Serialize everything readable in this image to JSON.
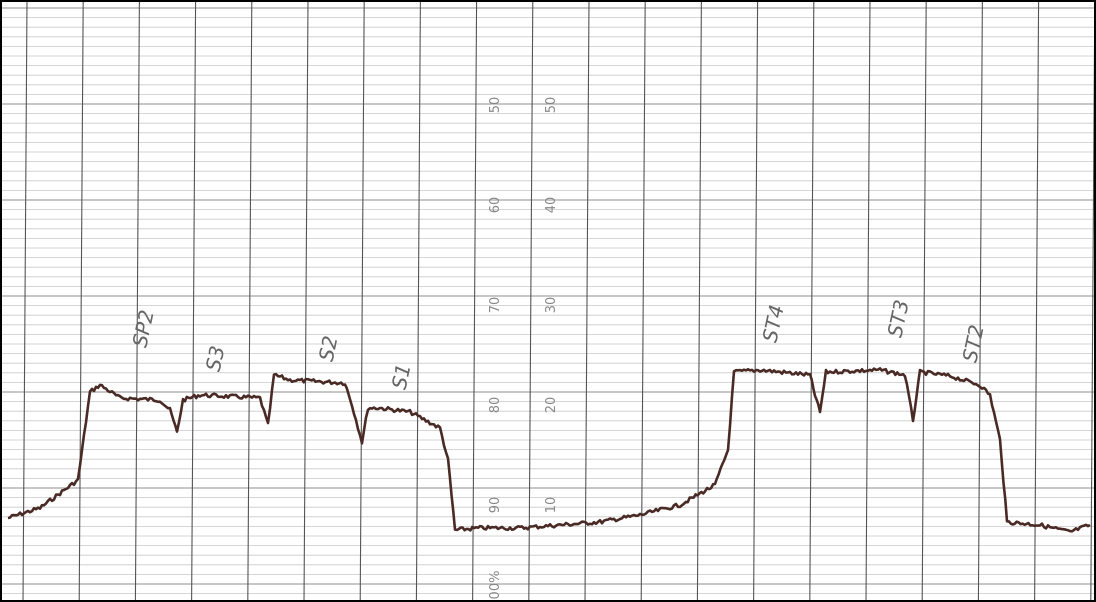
{
  "scale_left": {
    "labels": [
      "50",
      "60",
      "70",
      "80",
      "90",
      "00%"
    ]
  },
  "scale_right": {
    "labels": [
      "50",
      "40",
      "30",
      "20",
      "10"
    ]
  },
  "annotations": [
    "SP2",
    "S3",
    "S2",
    "S1",
    "ST4",
    "ST3",
    "ST2"
  ]
}
